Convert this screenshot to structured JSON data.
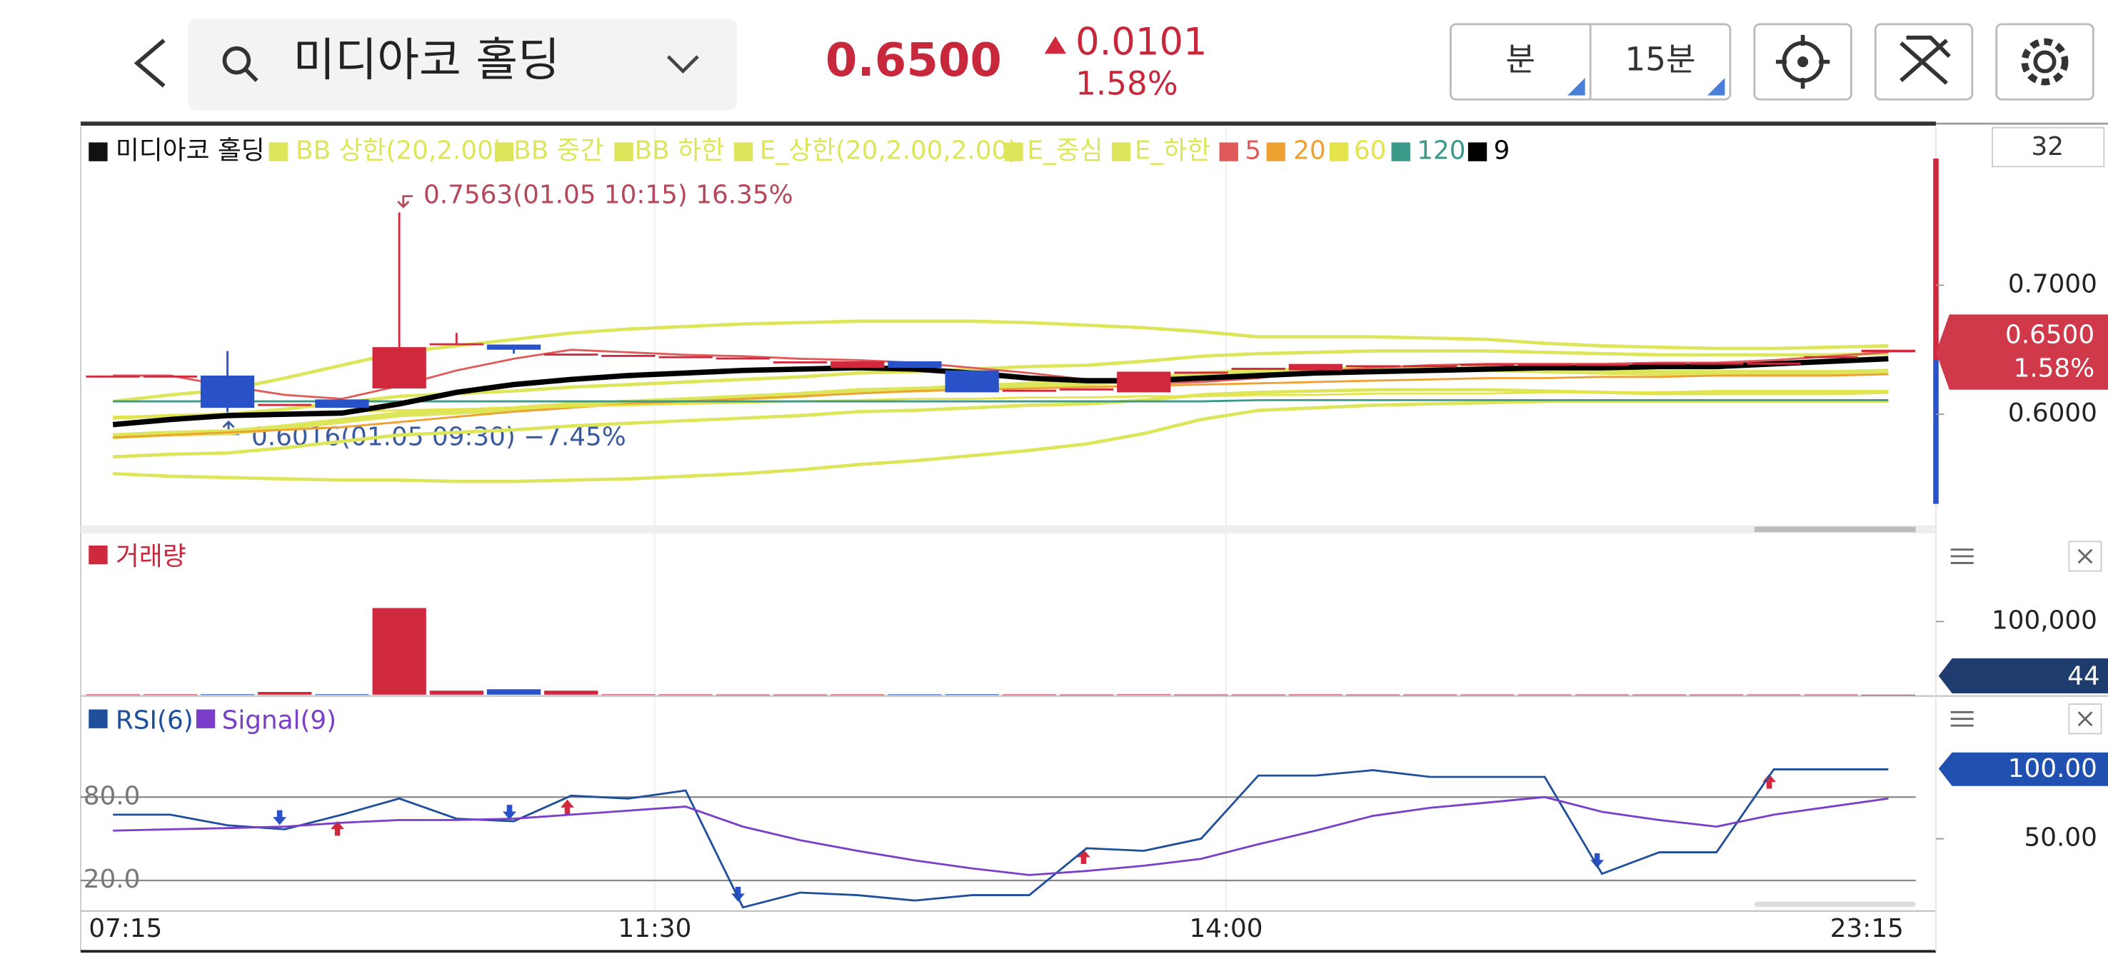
{
  "header": {
    "title": "미디아코 홀딩",
    "price": "0.6500",
    "change": "0.0101",
    "change_pct": "1.58%",
    "buttons": [
      "분",
      "15분"
    ]
  },
  "price_chart": {
    "type": "candlestick",
    "count_label": "32",
    "candle_name": "미디아코 홀딩",
    "open": [
      0.63,
      0.63,
      0.63,
      0.608,
      0.6115,
      0.62,
      0.655,
      0.654,
      0.647,
      0.646,
      0.645,
      0.644,
      0.641,
      0.636,
      0.641,
      0.634,
      0.619,
      0.62,
      0.617,
      0.633,
      0.636,
      0.634,
      0.638,
      0.638,
      0.639,
      0.639,
      0.639,
      0.64,
      0.64,
      0.64,
      0.645,
      0.648
    ],
    "high": [
      0.63,
      0.63,
      0.649,
      0.608,
      0.6115,
      0.7563,
      0.663,
      0.654,
      0.647,
      0.646,
      0.645,
      0.644,
      0.641,
      0.641,
      0.641,
      0.634,
      0.619,
      0.62,
      0.633,
      0.633,
      0.636,
      0.639,
      0.638,
      0.638,
      0.639,
      0.639,
      0.639,
      0.64,
      0.64,
      0.64,
      0.645,
      0.65
    ],
    "low": [
      0.63,
      0.63,
      0.6016,
      0.608,
      0.605,
      0.62,
      0.655,
      0.647,
      0.647,
      0.646,
      0.645,
      0.644,
      0.641,
      0.636,
      0.636,
      0.617,
      0.619,
      0.62,
      0.617,
      0.633,
      0.636,
      0.634,
      0.638,
      0.638,
      0.639,
      0.639,
      0.639,
      0.64,
      0.64,
      0.64,
      0.645,
      0.648
    ],
    "close": [
      0.63,
      0.63,
      0.605,
      0.608,
      0.605,
      0.652,
      0.655,
      0.65,
      0.647,
      0.646,
      0.645,
      0.644,
      0.641,
      0.641,
      0.636,
      0.617,
      0.619,
      0.62,
      0.633,
      0.633,
      0.636,
      0.639,
      0.638,
      0.638,
      0.639,
      0.639,
      0.639,
      0.64,
      0.64,
      0.64,
      0.645,
      0.65
    ],
    "series": [
      {
        "name": "BB 상한(20,2.00)",
        "color": "#dde65a",
        "values": [
          0.61,
          0.615,
          0.619,
          0.628,
          0.638,
          0.648,
          0.653,
          0.658,
          0.663,
          0.666,
          0.668,
          0.67,
          0.671,
          0.672,
          0.672,
          0.672,
          0.671,
          0.669,
          0.667,
          0.664,
          0.66,
          0.66,
          0.66,
          0.659,
          0.658,
          0.655,
          0.653,
          0.652,
          0.651,
          0.651,
          0.652,
          0.653
        ]
      },
      {
        "name": "BB 중간",
        "color": "#dde65a",
        "values": [
          0.582,
          0.584,
          0.585,
          0.589,
          0.594,
          0.599,
          0.601,
          0.603,
          0.606,
          0.608,
          0.61,
          0.612,
          0.614,
          0.617,
          0.618,
          0.62,
          0.622,
          0.623,
          0.626,
          0.63,
          0.632,
          0.633,
          0.634,
          0.634,
          0.634,
          0.633,
          0.632,
          0.631,
          0.631,
          0.631,
          0.631,
          0.632
        ]
      },
      {
        "name": "BB 하한",
        "color": "#dde65a",
        "values": [
          0.554,
          0.552,
          0.551,
          0.55,
          0.549,
          0.549,
          0.548,
          0.548,
          0.549,
          0.55,
          0.552,
          0.554,
          0.557,
          0.561,
          0.564,
          0.568,
          0.572,
          0.577,
          0.585,
          0.596,
          0.603,
          0.605,
          0.607,
          0.608,
          0.609,
          0.61,
          0.61,
          0.61,
          0.61,
          0.61,
          0.61,
          0.61
        ]
      },
      {
        "name": "E_상한(20,2.00,2.00)",
        "color": "#dde65a",
        "values": [
          0.597,
          0.599,
          0.6,
          0.604,
          0.609,
          0.614,
          0.616,
          0.618,
          0.621,
          0.623,
          0.625,
          0.627,
          0.629,
          0.632,
          0.633,
          0.635,
          0.637,
          0.638,
          0.641,
          0.645,
          0.647,
          0.648,
          0.649,
          0.649,
          0.649,
          0.648,
          0.647,
          0.646,
          0.646,
          0.646,
          0.646,
          0.647
        ]
      },
      {
        "name": "E_중심",
        "color": "#dde65a",
        "values": [
          0.584,
          0.586,
          0.587,
          0.591,
          0.596,
          0.601,
          0.603,
          0.605,
          0.608,
          0.61,
          0.612,
          0.614,
          0.616,
          0.619,
          0.62,
          0.622,
          0.624,
          0.625,
          0.628,
          0.632,
          0.634,
          0.635,
          0.636,
          0.636,
          0.636,
          0.635,
          0.634,
          0.633,
          0.633,
          0.633,
          0.633,
          0.634
        ]
      },
      {
        "name": "E_하한",
        "color": "#dde65a",
        "values": [
          0.567,
          0.569,
          0.57,
          0.574,
          0.579,
          0.584,
          0.586,
          0.588,
          0.591,
          0.593,
          0.595,
          0.597,
          0.599,
          0.602,
          0.603,
          0.605,
          0.607,
          0.608,
          0.611,
          0.615,
          0.617,
          0.618,
          0.619,
          0.619,
          0.619,
          0.618,
          0.617,
          0.616,
          0.616,
          0.616,
          0.616,
          0.617
        ]
      },
      {
        "name": "5",
        "color": "#e05a5a",
        "values": [
          0.63,
          0.63,
          0.622,
          0.615,
          0.612,
          0.622,
          0.634,
          0.643,
          0.65,
          0.648,
          0.646,
          0.645,
          0.643,
          0.642,
          0.64,
          0.636,
          0.632,
          0.627,
          0.624,
          0.625,
          0.628,
          0.633,
          0.636,
          0.638,
          0.639,
          0.639,
          0.639,
          0.64,
          0.64,
          0.642,
          0.645,
          0.648
        ]
      },
      {
        "name": "20",
        "color": "#eea030",
        "values": [
          0.582,
          0.584,
          0.586,
          0.588,
          0.59,
          0.594,
          0.598,
          0.602,
          0.605,
          0.608,
          0.61,
          0.612,
          0.614,
          0.616,
          0.618,
          0.619,
          0.62,
          0.621,
          0.622,
          0.623,
          0.624,
          0.625,
          0.626,
          0.627,
          0.628,
          0.628,
          0.629,
          0.629,
          0.63,
          0.63,
          0.63,
          0.631
        ]
      },
      {
        "name": "60",
        "color": "#e4e44a",
        "values": [
          0.598,
          0.599,
          0.6,
          0.601,
          0.602,
          0.603,
          0.604,
          0.605,
          0.606,
          0.607,
          0.608,
          0.609,
          0.61,
          0.611,
          0.612,
          0.612,
          0.613,
          0.613,
          0.614,
          0.614,
          0.615,
          0.615,
          0.616,
          0.616,
          0.616,
          0.617,
          0.617,
          0.617,
          0.618,
          0.618,
          0.618,
          0.618
        ]
      },
      {
        "name": "120",
        "color": "#3a9a8a",
        "values": [
          0.61,
          0.61,
          0.61,
          0.61,
          0.61,
          0.61,
          0.61,
          0.61,
          0.61,
          0.61,
          0.61,
          0.61,
          0.61,
          0.61,
          0.61,
          0.61,
          0.61,
          0.61,
          0.61,
          0.61,
          0.611,
          0.611,
          0.611,
          0.611,
          0.611,
          0.611,
          0.611,
          0.611,
          0.611,
          0.611,
          0.611,
          0.611
        ]
      },
      {
        "name": "9",
        "color": "#000000",
        "values": [
          0.592,
          0.596,
          0.599,
          0.6,
          0.601,
          0.608,
          0.617,
          0.623,
          0.627,
          0.63,
          0.632,
          0.634,
          0.635,
          0.636,
          0.635,
          0.632,
          0.628,
          0.626,
          0.626,
          0.628,
          0.63,
          0.632,
          0.633,
          0.634,
          0.635,
          0.636,
          0.636,
          0.637,
          0.637,
          0.639,
          0.641,
          0.643
        ]
      }
    ],
    "ylim": [
      0.515,
      0.822
    ],
    "yticks": [
      {
        "value": 0.7,
        "label": "0.7000"
      },
      {
        "value": 0.6,
        "label": "0.6000"
      }
    ],
    "high_label": "0.7563(01.05 10:15) 16.35%",
    "low_label": "0.6016(01.05 09:30) −7.45%",
    "x_labels": [
      "07:15",
      "11:30",
      "14:00",
      "23:15"
    ]
  },
  "volume_chart": {
    "type": "bar",
    "name": "거래량",
    "color": "#d0283c",
    "values": [
      400,
      500,
      600,
      3700,
      600,
      118500,
      5500,
      7400,
      5500,
      500,
      400,
      300,
      300,
      400,
      500,
      600,
      400,
      300,
      500,
      300,
      300,
      400,
      300,
      300,
      300,
      300,
      300,
      300,
      300,
      300,
      300,
      44
    ],
    "ylim": [
      0,
      215000
    ],
    "yticks": [
      {
        "value": 100000,
        "label": "100,000"
      }
    ],
    "last_label": "44"
  },
  "rsi_chart": {
    "type": "line",
    "series": [
      {
        "name": "RSI(6)",
        "color": "#1f4f9a",
        "values": [
          67.4,
          67.4,
          59.7,
          56.8,
          67.4,
          79.0,
          64.5,
          62.6,
          81.0,
          79.0,
          84.8,
          0.6,
          11.3,
          9.4,
          5.5,
          9.4,
          9.4,
          43.2,
          41.3,
          50.0,
          95.5,
          95.5,
          99.4,
          94.5,
          94.5,
          94.5,
          24.8,
          40.3,
          40.3,
          100,
          100,
          100
        ]
      },
      {
        "name": "Signal(9)",
        "color": "#7a3fc8",
        "values": [
          55.8,
          56.8,
          57.7,
          58.7,
          61.6,
          63.5,
          63.5,
          64.5,
          67.4,
          70.3,
          73.2,
          58.7,
          49.0,
          41.3,
          34.5,
          28.7,
          23.9,
          26.8,
          30.6,
          35.5,
          46.1,
          55.8,
          66.5,
          72.3,
          76.1,
          80.0,
          69.4,
          63.5,
          58.7,
          67.4,
          73.2,
          79.0
        ]
      }
    ],
    "ylim": [
      -2,
      146
    ],
    "yticks": [
      {
        "value": 80,
        "label": "80.0"
      },
      {
        "value": 20,
        "label": "20.0"
      }
    ],
    "y2ticks": [
      {
        "value": 50,
        "label": "50.00"
      }
    ],
    "last_label": "100.00"
  }
}
